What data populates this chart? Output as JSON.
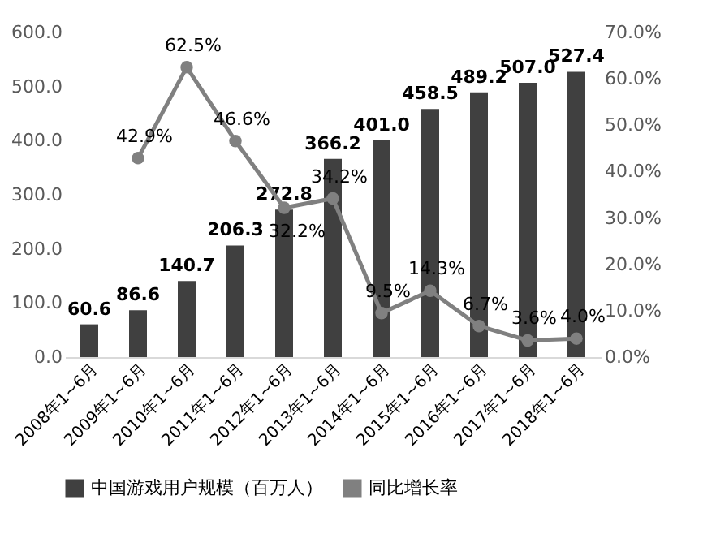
{
  "chart_data": {
    "type": "bar",
    "categories": [
      "2008年1~6月",
      "2009年1~6月",
      "2010年1~6月",
      "2011年1~6月",
      "2012年1~6月",
      "2013年1~6月",
      "2014年1~6月",
      "2015年1~6月",
      "2016年1~6月",
      "2017年1~6月",
      "2018年1~6月"
    ],
    "series": [
      {
        "name": "中国游戏用户规模（百万人）",
        "type": "bar",
        "color": "#404040",
        "values": [
          60.6,
          86.6,
          140.7,
          206.3,
          272.8,
          366.2,
          401.0,
          458.5,
          489.2,
          507.0,
          527.4
        ],
        "value_labels": [
          "60.6",
          "86.6",
          "140.7",
          "206.3",
          "272.8",
          "366.2",
          "401.0",
          "458.5",
          "489.2",
          "507.0",
          "527.4"
        ]
      },
      {
        "name": "同比增长率",
        "type": "line",
        "axis": "y2",
        "color": "#808080",
        "values": [
          null,
          42.9,
          62.5,
          46.6,
          32.2,
          34.2,
          9.5,
          14.3,
          6.7,
          3.6,
          4.0
        ],
        "value_labels": [
          null,
          "42.9%",
          "62.5%",
          "46.6%",
          "32.2%",
          "34.2%",
          "9.5%",
          "14.3%",
          "6.7%",
          "3.6%",
          "4.0%"
        ]
      }
    ],
    "ylim": [
      0,
      600
    ],
    "yticks": [
      {
        "value": 0,
        "label": "0.0"
      },
      {
        "value": 100,
        "label": "100.0"
      },
      {
        "value": 200,
        "label": "200.0"
      },
      {
        "value": 300,
        "label": "300.0"
      },
      {
        "value": 400,
        "label": "400.0"
      },
      {
        "value": 500,
        "label": "500.0"
      },
      {
        "value": 600,
        "label": "600.0"
      }
    ],
    "y2lim": [
      0,
      70
    ],
    "y2ticks": [
      {
        "value": 0,
        "label": "0.0%"
      },
      {
        "value": 10,
        "label": "10.0%"
      },
      {
        "value": 20,
        "label": "20.0%"
      },
      {
        "value": 30,
        "label": "30.0%"
      },
      {
        "value": 40,
        "label": "40.0%"
      },
      {
        "value": 50,
        "label": "50.0%"
      },
      {
        "value": 60,
        "label": "60.0%"
      },
      {
        "value": 70,
        "label": "70.0%"
      }
    ],
    "grid": false,
    "legend": "bottom",
    "marker": "circle"
  }
}
